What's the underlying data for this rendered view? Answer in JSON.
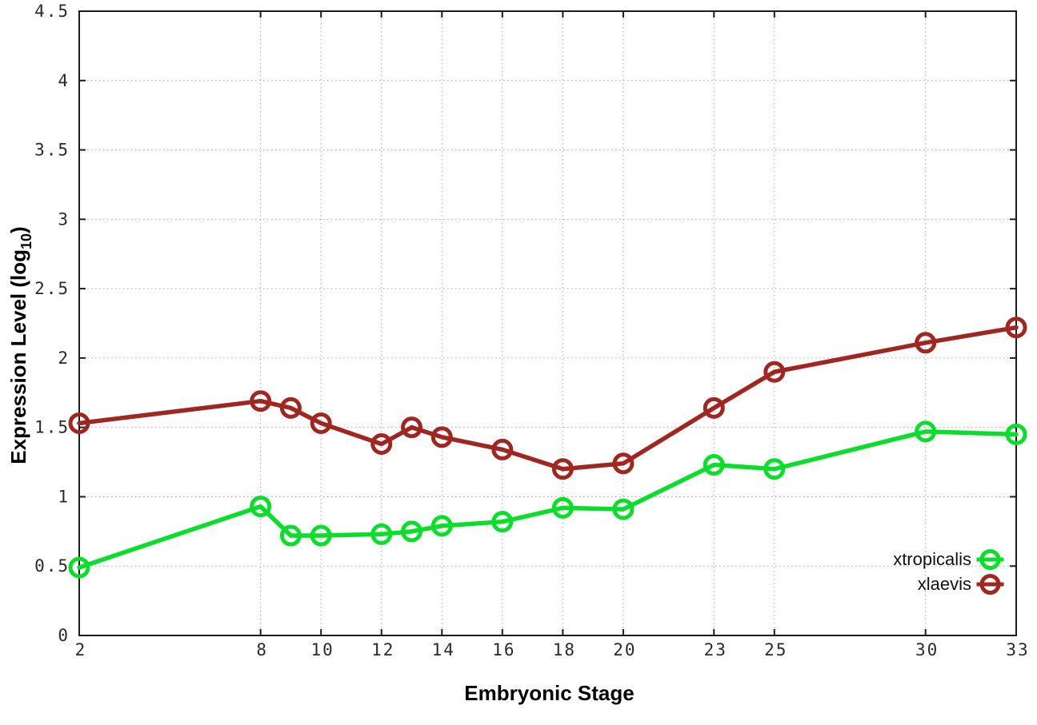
{
  "chart_data": {
    "type": "line",
    "title": "",
    "xlabel": "Embryonic Stage",
    "ylabel": "Expression Level (log10)",
    "ylabel_parts": {
      "prefix": "Expression Level (log",
      "subscript": "10",
      "suffix": ")"
    },
    "x": [
      2,
      8,
      9,
      10,
      12,
      13,
      14,
      16,
      18,
      20,
      23,
      25,
      30,
      33
    ],
    "series": [
      {
        "name": "xtropicalis",
        "color": "#0cdd2c",
        "values": [
          0.49,
          0.93,
          0.72,
          0.72,
          0.73,
          0.75,
          0.79,
          0.82,
          0.92,
          0.91,
          1.23,
          1.2,
          1.47,
          1.45
        ]
      },
      {
        "name": "xlaevis",
        "color": "#9f2722",
        "values": [
          1.53,
          1.69,
          1.64,
          1.53,
          1.38,
          1.5,
          1.43,
          1.34,
          1.2,
          1.24,
          1.64,
          1.9,
          2.11,
          2.22
        ]
      }
    ],
    "xlim": [
      2,
      33
    ],
    "ylim": [
      0,
      4.5
    ],
    "x_ticks": [
      2,
      8,
      10,
      12,
      14,
      16,
      18,
      20,
      23,
      25,
      30,
      33
    ],
    "x_tick_labels": [
      "2",
      "8",
      "10",
      "12",
      "14",
      "16",
      "18",
      "20",
      "23",
      "25",
      "30",
      "33"
    ],
    "y_ticks": [
      0,
      0.5,
      1,
      1.5,
      2,
      2.5,
      3,
      3.5,
      4,
      4.5
    ],
    "y_tick_labels": [
      "0",
      "0.5",
      "1",
      "1.5",
      "2",
      "2.5",
      "3",
      "3.5",
      "4",
      "4.5"
    ],
    "grid": true,
    "grid_color": "#a8a8a8",
    "axis_color": "#1c1c1c",
    "tick_label_color": "#2a2a2a",
    "legend_position": "bottom-right",
    "legend_entries": [
      "xtropicalis",
      "xlaevis"
    ],
    "marker": "open-circle"
  }
}
